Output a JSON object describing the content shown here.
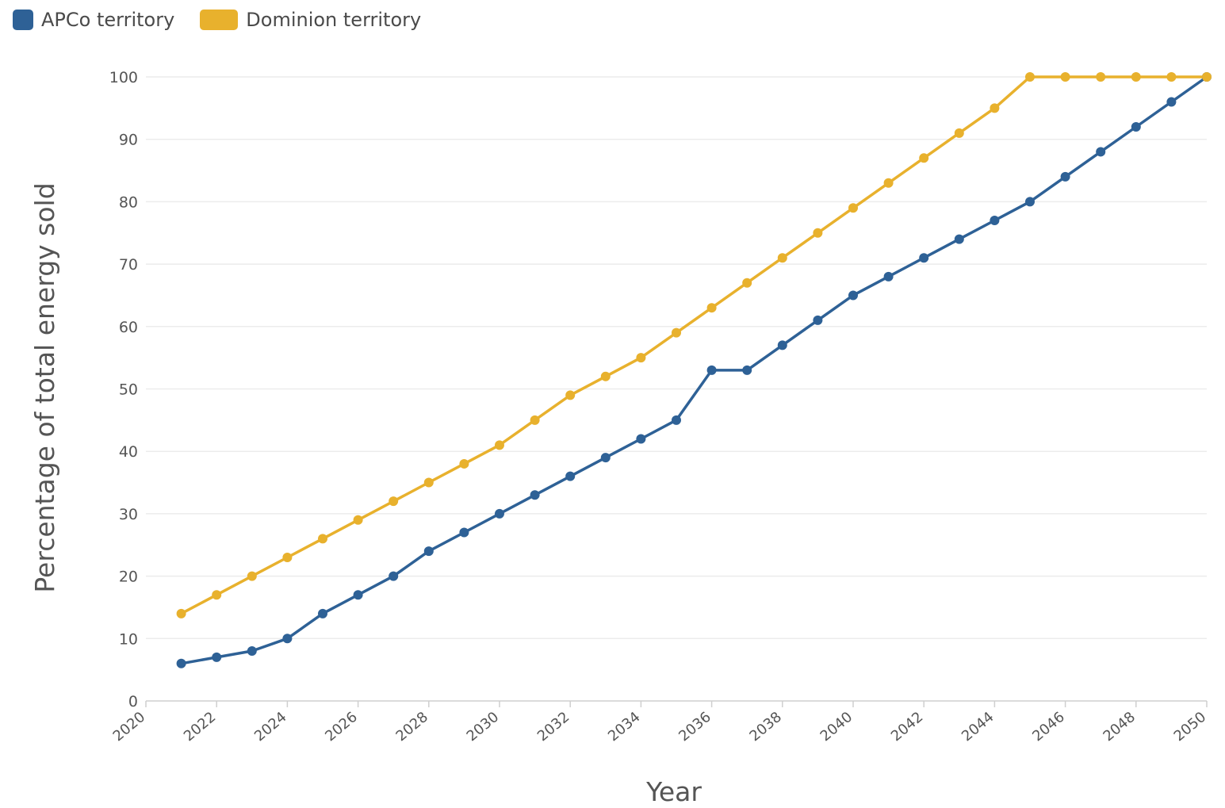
{
  "chart_data": {
    "type": "line",
    "title": "",
    "xlabel": "Year",
    "ylabel": "Percentage of total energy sold",
    "xlim": [
      2020,
      2050
    ],
    "ylim": [
      0,
      100
    ],
    "x_ticks": [
      2020,
      2022,
      2024,
      2026,
      2028,
      2030,
      2032,
      2034,
      2036,
      2038,
      2040,
      2042,
      2044,
      2046,
      2048,
      2050
    ],
    "y_ticks": [
      0,
      10,
      20,
      30,
      40,
      50,
      60,
      70,
      80,
      90,
      100
    ],
    "grid": true,
    "legend_position": "top-left",
    "x": [
      2021,
      2022,
      2023,
      2024,
      2025,
      2026,
      2027,
      2028,
      2029,
      2030,
      2031,
      2032,
      2033,
      2034,
      2035,
      2036,
      2037,
      2038,
      2039,
      2040,
      2041,
      2042,
      2043,
      2044,
      2045,
      2046,
      2047,
      2048,
      2049,
      2050
    ],
    "series": [
      {
        "name": "APCo territory",
        "color": "#2e6196",
        "values": [
          6,
          7,
          8,
          10,
          14,
          17,
          20,
          24,
          27,
          30,
          33,
          36,
          39,
          42,
          45,
          53,
          53,
          57,
          61,
          65,
          68,
          71,
          74,
          77,
          80,
          84,
          88,
          92,
          96,
          100
        ]
      },
      {
        "name": "Dominion territory",
        "color": "#e8b12d",
        "values": [
          14,
          17,
          20,
          23,
          26,
          29,
          32,
          35,
          38,
          41,
          45,
          49,
          52,
          55,
          59,
          63,
          67,
          71,
          75,
          79,
          83,
          87,
          91,
          95,
          100,
          100,
          100,
          100,
          100,
          100
        ]
      }
    ]
  }
}
